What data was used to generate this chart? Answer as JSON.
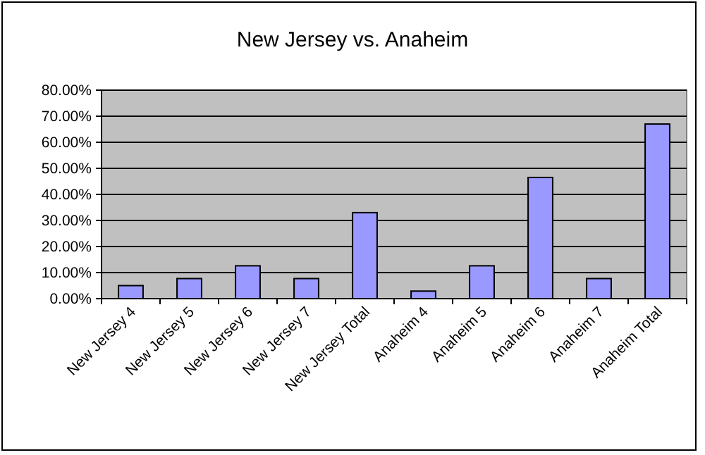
{
  "chart_data": {
    "type": "bar",
    "title": "New Jersey vs. Anaheim",
    "categories": [
      "New Jersey 4",
      "New Jersey 5",
      "New Jersey 6",
      "New Jersey 7",
      "New Jersey Total",
      "Anaheim 4",
      "Anaheim 5",
      "Anaheim 6",
      "Anaheim 7",
      "Anaheim Total"
    ],
    "values": [
      5,
      7.7,
      12.6,
      7.7,
      33,
      2.9,
      12.6,
      46.5,
      7.7,
      67
    ],
    "color": "#9999ff",
    "ylim": [
      0,
      80
    ],
    "yticks": [
      {
        "value": 0,
        "label": "0.00%"
      },
      {
        "value": 10,
        "label": "10.00%"
      },
      {
        "value": 20,
        "label": "20.00%"
      },
      {
        "value": 30,
        "label": "30.00%"
      },
      {
        "value": 40,
        "label": "40.00%"
      },
      {
        "value": 50,
        "label": "50.00%"
      },
      {
        "value": 60,
        "label": "60.00%"
      },
      {
        "value": 70,
        "label": "70.00%"
      },
      {
        "value": 80,
        "label": "80.00%"
      }
    ],
    "grid": "y"
  }
}
